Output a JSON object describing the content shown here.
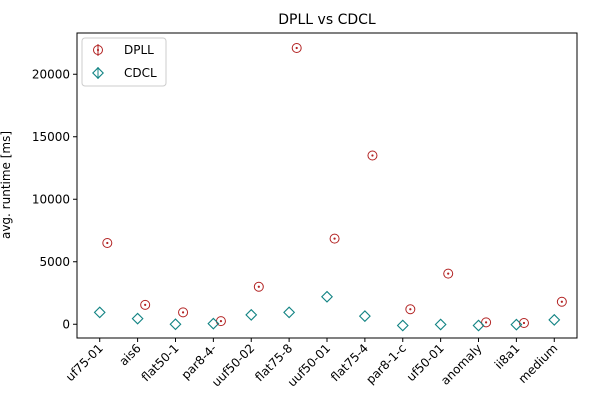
{
  "chart_data": {
    "type": "scatter",
    "title": "DPLL vs CDCL",
    "xlabel": "",
    "ylabel": "avg. runtime [ms]",
    "categories": [
      "uf75-01",
      "ais6",
      "flat50-1",
      "par8-4-",
      "uuf50-02",
      "flat75-8",
      "uuf50-01",
      "flat75-4",
      "par8-1-c",
      "uf50-01",
      "anomaly",
      "ii8a1",
      "medium"
    ],
    "ylim": [
      -1100,
      23300
    ],
    "yticks": [
      0,
      5000,
      10000,
      15000,
      20000
    ],
    "grid": false,
    "legend_position": "top-left",
    "series": [
      {
        "name": "DPLL",
        "marker": "circle",
        "color": "#b22222",
        "x_offset": 0.2,
        "values": [
          6500,
          1550,
          950,
          250,
          3000,
          22100,
          6850,
          13500,
          1200,
          4050,
          150,
          100,
          1800
        ]
      },
      {
        "name": "CDCL",
        "marker": "diamond",
        "color": "#138484",
        "x_offset": 0.0,
        "values": [
          950,
          450,
          0,
          50,
          750,
          950,
          2200,
          650,
          -100,
          -20,
          -100,
          -30,
          350
        ]
      }
    ]
  }
}
